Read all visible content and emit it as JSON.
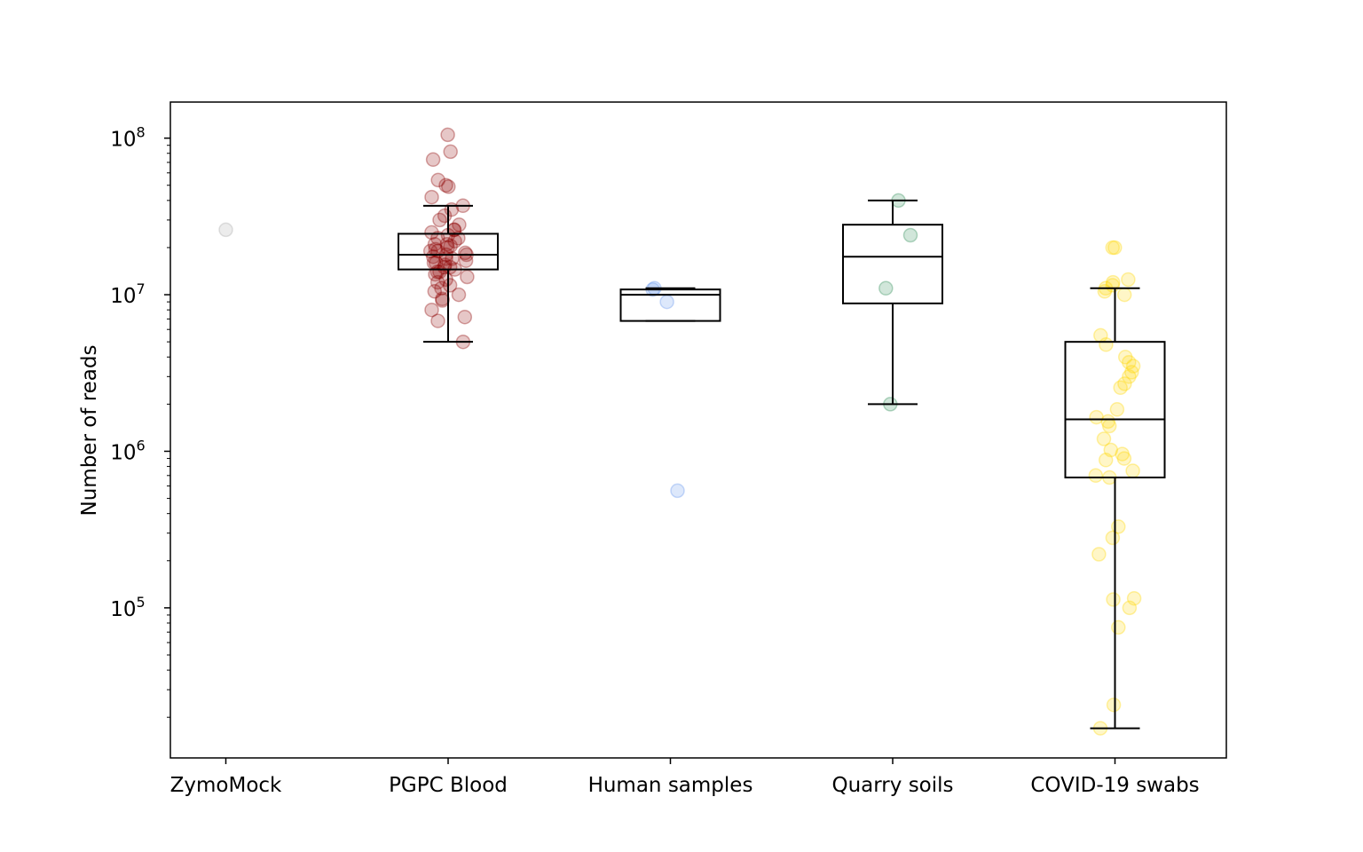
{
  "chart_data": {
    "type": "boxplot",
    "xlabel": "",
    "ylabel": "Number of reads",
    "y_scale": "log",
    "ylim": [
      11000,
      170000000
    ],
    "y_ticks": [
      {
        "value": 100000,
        "base": "10",
        "exp": "5"
      },
      {
        "value": 1000000,
        "base": "10",
        "exp": "6"
      },
      {
        "value": 10000000,
        "base": "10",
        "exp": "7"
      },
      {
        "value": 100000000,
        "base": "10",
        "exp": "8"
      }
    ],
    "grid": false,
    "categories": [
      "ZymoMock",
      "PGPC Blood",
      "Human samples",
      "Quarry soils",
      "COVID-19 swabs"
    ],
    "series": [
      {
        "category": "ZymoMock",
        "color": "#a9a9a9",
        "box": null,
        "points": [
          26000000
        ]
      },
      {
        "category": "PGPC Blood",
        "color": "#8b0000",
        "box": {
          "whislo": 5000000,
          "q1": 14500000,
          "med": 18000000,
          "q3": 24500000,
          "whishi": 37000000
        },
        "points": [
          105000000,
          82000000,
          73000000,
          54000000,
          50000000,
          49000000,
          42000000,
          37000000,
          35000000,
          32000000,
          30000000,
          28000000,
          26000000,
          25000000,
          24000000,
          23000000,
          22000000,
          21000000,
          20500000,
          20000000,
          19500000,
          19000000,
          18500000,
          18000000,
          17500000,
          17000000,
          16500000,
          16000000,
          15500000,
          15000000,
          14500000,
          14000000,
          13500000,
          13000000,
          12500000,
          12000000,
          11500000,
          11000000,
          10500000,
          10000000,
          9200000,
          9400000,
          8000000,
          7200000,
          6800000,
          5000000,
          21000000,
          19000000,
          17000000,
          15000000,
          23000000,
          26000000,
          16000000,
          14000000,
          18000000
        ]
      },
      {
        "category": "Human samples",
        "color": "#6495ed",
        "box": {
          "whislo": 6800000,
          "q1": 6800000,
          "med": 10000000,
          "q3": 10800000,
          "whishi": 11000000
        },
        "points": [
          11000000,
          10800000,
          9000000,
          560000
        ]
      },
      {
        "category": "Quarry soils",
        "color": "#2e8b57",
        "box": {
          "whislo": 2000000,
          "q1": 8800000,
          "med": 17500000,
          "q3": 28000000,
          "whishi": 40000000
        },
        "points": [
          40000000,
          24000000,
          11000000,
          2000000
        ]
      },
      {
        "category": "COVID-19 swabs",
        "color": "#ffd700",
        "box": {
          "whislo": 17000,
          "q1": 680000,
          "med": 1600000,
          "q3": 5000000,
          "whishi": 11000000
        },
        "points": [
          20000000,
          20000000,
          12500000,
          12000000,
          11500000,
          11000000,
          10500000,
          10000000,
          5500000,
          4800000,
          4000000,
          3700000,
          3500000,
          3200000,
          3000000,
          2700000,
          2550000,
          1850000,
          1650000,
          1550000,
          1450000,
          1200000,
          1020000,
          960000,
          900000,
          880000,
          750000,
          700000,
          680000,
          330000,
          280000,
          220000,
          115000,
          113000,
          100000,
          75000,
          24000,
          17000
        ]
      }
    ]
  }
}
